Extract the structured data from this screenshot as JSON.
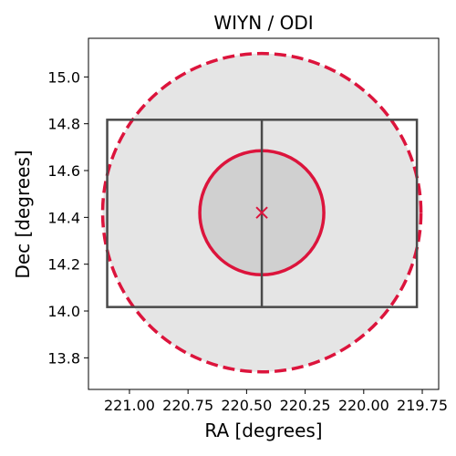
{
  "chart_data": {
    "type": "scatter",
    "title": "WIYN / ODI",
    "xlabel": "RA [degrees]",
    "ylabel": "Dec [degrees]",
    "x_inverted": true,
    "xlim": [
      221.175,
      219.68
    ],
    "ylim": [
      13.665,
      15.165
    ],
    "xticks": [
      221.0,
      220.75,
      220.5,
      220.25,
      220.0,
      219.75
    ],
    "xtick_labels": [
      "221.00",
      "220.75",
      "220.50",
      "220.25",
      "220.00",
      "219.75"
    ],
    "yticks": [
      13.8,
      14.0,
      14.2,
      14.4,
      14.6,
      14.8,
      15.0
    ],
    "ytick_labels": [
      "13.8",
      "14.0",
      "14.2",
      "14.4",
      "14.6",
      "14.8",
      "15.0"
    ],
    "grid": false,
    "center": {
      "ra": 220.435,
      "dec": 14.42
    },
    "outer_circle": {
      "ra": 220.435,
      "dec": 14.42,
      "radius_dec_deg": 0.68,
      "style": "dashed",
      "fill": "#e5e5e5"
    },
    "inner_circle": {
      "ra": 220.435,
      "dec": 14.42,
      "radius_dec_deg": 0.265,
      "style": "solid",
      "fill": "#d0d0d0"
    },
    "field_rectangle": {
      "ra_min": 219.773,
      "ra_max": 221.095,
      "dec_min": 14.017,
      "dec_max": 14.817,
      "divider_ra": 220.435
    },
    "colors": {
      "circle": "#dc143c",
      "rectangle": "#4a4a4a",
      "marker": "#dc143c"
    }
  }
}
